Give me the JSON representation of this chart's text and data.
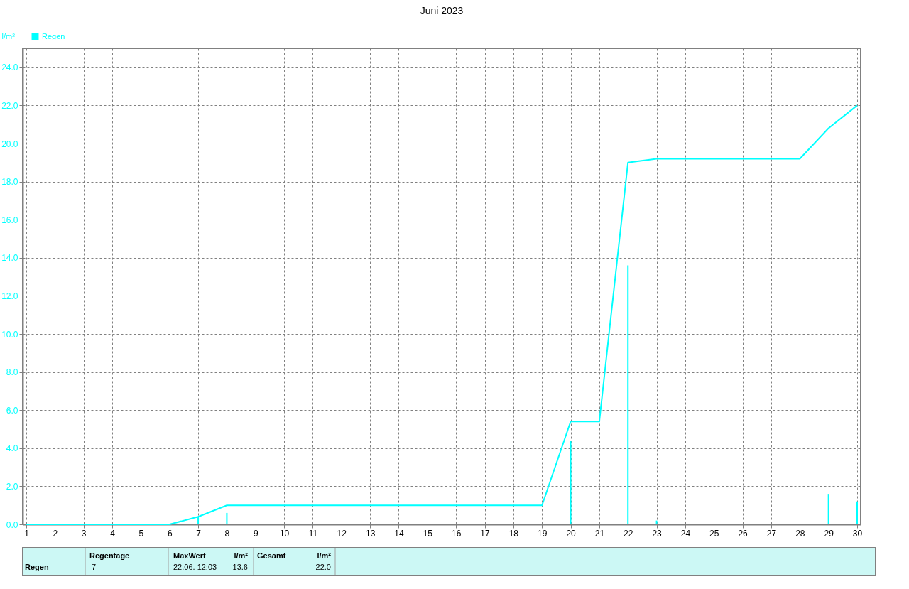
{
  "chart_data": {
    "type": "line",
    "title": "Juni 2023",
    "ylabel": "l/m²",
    "xlim": [
      1,
      30
    ],
    "xticks": [
      1,
      2,
      3,
      4,
      5,
      6,
      7,
      8,
      9,
      10,
      11,
      12,
      13,
      14,
      15,
      16,
      17,
      18,
      19,
      20,
      21,
      22,
      23,
      24,
      25,
      26,
      27,
      28,
      29,
      30
    ],
    "ylim": [
      0,
      25
    ],
    "yticks": [
      {
        "value": 0,
        "label": "0.0"
      },
      {
        "value": 2,
        "label": "2.0"
      },
      {
        "value": 4,
        "label": "4.0"
      },
      {
        "value": 6,
        "label": "6.0"
      },
      {
        "value": 8,
        "label": "8.0"
      },
      {
        "value": 10,
        "label": "10.0"
      },
      {
        "value": 12,
        "label": "12.0"
      },
      {
        "value": 14,
        "label": "14.0"
      },
      {
        "value": 16,
        "label": "16.0"
      },
      {
        "value": 18,
        "label": "18.0"
      },
      {
        "value": 20,
        "label": "20.0"
      },
      {
        "value": 22,
        "label": "22.0"
      },
      {
        "value": 24,
        "label": "24.0"
      }
    ],
    "grid": true,
    "legend": "top left",
    "marker": "none",
    "line_style": "solid",
    "series": [
      {
        "name": "Regen",
        "color": "#00ffff",
        "x": [
          1,
          6,
          7,
          8,
          19,
          20,
          21,
          22,
          23,
          28,
          29,
          30
        ],
        "values": [
          0,
          0,
          0.4,
          1.0,
          1.0,
          5.4,
          5.4,
          19.0,
          19.2,
          19.2,
          20.8,
          22.0
        ]
      },
      {
        "type": "bar",
        "color": "#00ffff",
        "x": [
          7,
          8,
          20,
          22,
          23,
          29,
          30
        ],
        "values": [
          0.4,
          0.6,
          4.4,
          13.6,
          0.2,
          1.6,
          1.2
        ]
      }
    ],
    "annotations": [
      "Regen",
      "Regentage",
      "7",
      "MaxWert",
      "l/m²",
      "22.06.  12:03",
      "13.6",
      "Gesamt",
      "l/m²",
      "22.0"
    ]
  }
}
